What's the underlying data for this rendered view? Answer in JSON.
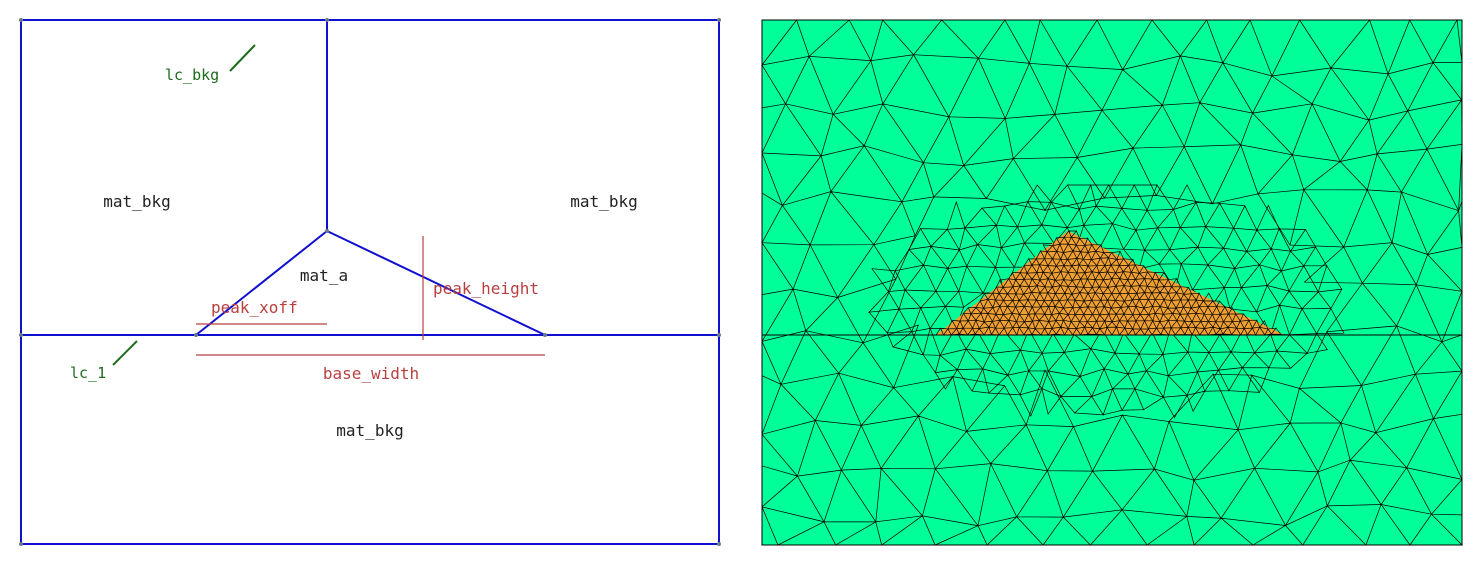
{
  "geometry_panel": {
    "region_labels": {
      "top_left": "mat_bkg",
      "top_right": "mat_bkg",
      "bottom": "mat_bkg",
      "peak": "mat_a"
    },
    "dimension_labels": {
      "peak_xoff": "peak_xoff",
      "peak_height": "peak_height",
      "base_width": "base_width"
    },
    "mesh_size_labels": {
      "background": "lc_bkg",
      "interface": "lc_1"
    }
  },
  "mesh_panel": {
    "fill_background": "#00FF99",
    "fill_peak": "#F0A030",
    "edge_color": "#000000"
  },
  "colors": {
    "boundary": "#1010D0",
    "dimension": "#B84040",
    "mesh_size": "#1E6B1E",
    "text": "#222222"
  }
}
